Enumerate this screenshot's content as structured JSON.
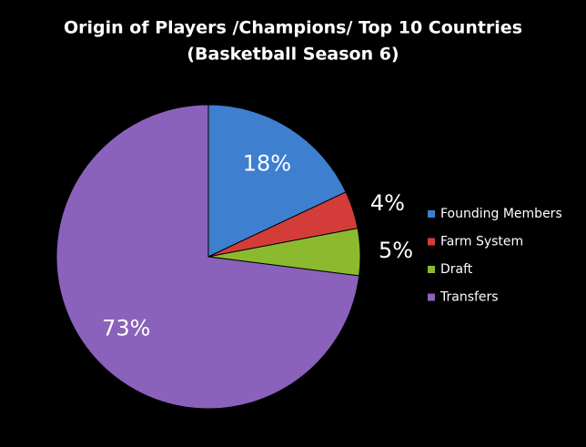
{
  "chart_data": {
    "type": "pie",
    "title": "Origin of Players /Champions/ Top 10 Countries",
    "subtitle": "(Basketball Season 6)",
    "categories": [
      "Founding Members",
      "Farm System",
      "Draft",
      "Transfers"
    ],
    "values": [
      18,
      4,
      5,
      73
    ],
    "value_labels": [
      "18%",
      "4%",
      "5%",
      "73%"
    ],
    "colors": [
      "#3f7fd0",
      "#d43c3a",
      "#8cba2e",
      "#8a62bb"
    ],
    "legend": "right"
  }
}
